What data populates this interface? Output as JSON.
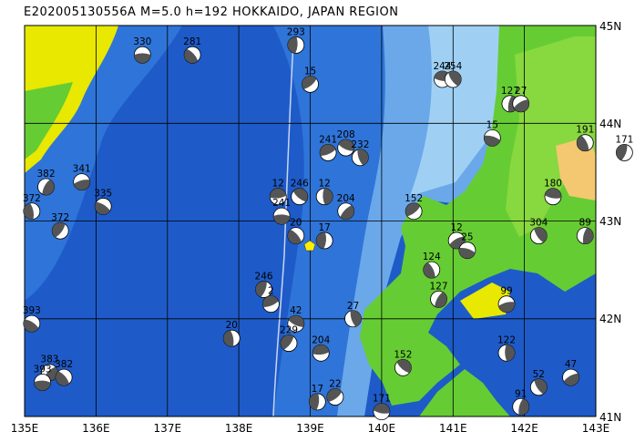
{
  "title": "E202005130556A  M=5.0  h=192  HOKKAIDO, JAPAN REGION",
  "map": {
    "lon_labels": [
      "135E",
      "136E",
      "137E",
      "138E",
      "139E",
      "140E",
      "141E",
      "142E",
      "143E"
    ],
    "lat_labels": [
      "45N",
      "44N",
      "43N",
      "42N",
      "41N"
    ],
    "colors": {
      "deep_sea": "#1e5bc8",
      "mid_sea": "#3c86e0",
      "shelf": "#9fd0f4",
      "lowland": "#66cc33",
      "upland": "#e8e800",
      "highland": "#f4c870",
      "epicenter": "#ffee00"
    },
    "events": [
      {
        "label": "330",
        "lon": 136.65,
        "lat": 44.7
      },
      {
        "label": "281",
        "lon": 137.35,
        "lat": 44.7
      },
      {
        "label": "293",
        "lon": 138.8,
        "lat": 44.8
      },
      {
        "label": "15",
        "lon": 139.0,
        "lat": 44.4
      },
      {
        "label": "244",
        "lon": 140.85,
        "lat": 44.45
      },
      {
        "label": "254",
        "lon": 141.0,
        "lat": 44.45
      },
      {
        "label": "127",
        "lon": 141.8,
        "lat": 44.2
      },
      {
        "label": "27",
        "lon": 141.95,
        "lat": 44.2
      },
      {
        "label": "15",
        "lon": 141.55,
        "lat": 43.85
      },
      {
        "label": "191",
        "lon": 142.85,
        "lat": 43.8
      },
      {
        "label": "171",
        "lon": 143.4,
        "lat": 43.7
      },
      {
        "label": "241",
        "lon": 139.25,
        "lat": 43.7
      },
      {
        "label": "208",
        "lon": 139.5,
        "lat": 43.75
      },
      {
        "label": "232",
        "lon": 139.7,
        "lat": 43.65
      },
      {
        "label": "382",
        "lon": 135.3,
        "lat": 43.35
      },
      {
        "label": "341",
        "lon": 135.8,
        "lat": 43.4
      },
      {
        "label": "335",
        "lon": 136.1,
        "lat": 43.15
      },
      {
        "label": "372",
        "lon": 135.1,
        "lat": 43.1
      },
      {
        "label": "372",
        "lon": 135.5,
        "lat": 42.9
      },
      {
        "label": "12",
        "lon": 138.55,
        "lat": 43.25
      },
      {
        "label": "246",
        "lon": 138.85,
        "lat": 43.25
      },
      {
        "label": "12",
        "lon": 139.2,
        "lat": 43.25
      },
      {
        "label": "204",
        "lon": 139.5,
        "lat": 43.1
      },
      {
        "label": "241",
        "lon": 138.6,
        "lat": 43.05
      },
      {
        "label": "20",
        "lon": 138.8,
        "lat": 42.85
      },
      {
        "label": "17",
        "lon": 139.2,
        "lat": 42.8
      },
      {
        "label": "152",
        "lon": 140.45,
        "lat": 43.1
      },
      {
        "label": "180",
        "lon": 142.4,
        "lat": 43.25
      },
      {
        "label": "304",
        "lon": 142.2,
        "lat": 42.85
      },
      {
        "label": "89",
        "lon": 142.85,
        "lat": 42.85
      },
      {
        "label": "12",
        "lon": 141.05,
        "lat": 42.8
      },
      {
        "label": "25",
        "lon": 141.2,
        "lat": 42.7
      },
      {
        "label": "124",
        "lon": 140.7,
        "lat": 42.5
      },
      {
        "label": "246",
        "lon": 138.35,
        "lat": 42.3
      },
      {
        "label": "2",
        "lon": 138.45,
        "lat": 42.15
      },
      {
        "label": "42",
        "lon": 138.8,
        "lat": 41.95
      },
      {
        "label": "27",
        "lon": 139.6,
        "lat": 42.0
      },
      {
        "label": "127",
        "lon": 140.8,
        "lat": 42.2
      },
      {
        "label": "99",
        "lon": 141.75,
        "lat": 42.15
      },
      {
        "label": "393",
        "lon": 135.1,
        "lat": 41.95
      },
      {
        "label": "20",
        "lon": 137.9,
        "lat": 41.8
      },
      {
        "label": "229",
        "lon": 138.7,
        "lat": 41.75
      },
      {
        "label": "204",
        "lon": 139.15,
        "lat": 41.65
      },
      {
        "label": "152",
        "lon": 140.3,
        "lat": 41.5
      },
      {
        "label": "122",
        "lon": 141.75,
        "lat": 41.65
      },
      {
        "label": "383",
        "lon": 135.35,
        "lat": 41.45
      },
      {
        "label": "393",
        "lon": 135.25,
        "lat": 41.35
      },
      {
        "label": "382",
        "lon": 135.55,
        "lat": 41.4
      },
      {
        "label": "17",
        "lon": 139.1,
        "lat": 41.15
      },
      {
        "label": "22",
        "lon": 139.35,
        "lat": 41.2
      },
      {
        "label": "171",
        "lon": 140.0,
        "lat": 41.05
      },
      {
        "label": "52",
        "lon": 142.2,
        "lat": 41.3
      },
      {
        "label": "91",
        "lon": 141.95,
        "lat": 41.1
      },
      {
        "label": "47",
        "lon": 142.65,
        "lat": 41.4
      }
    ]
  }
}
